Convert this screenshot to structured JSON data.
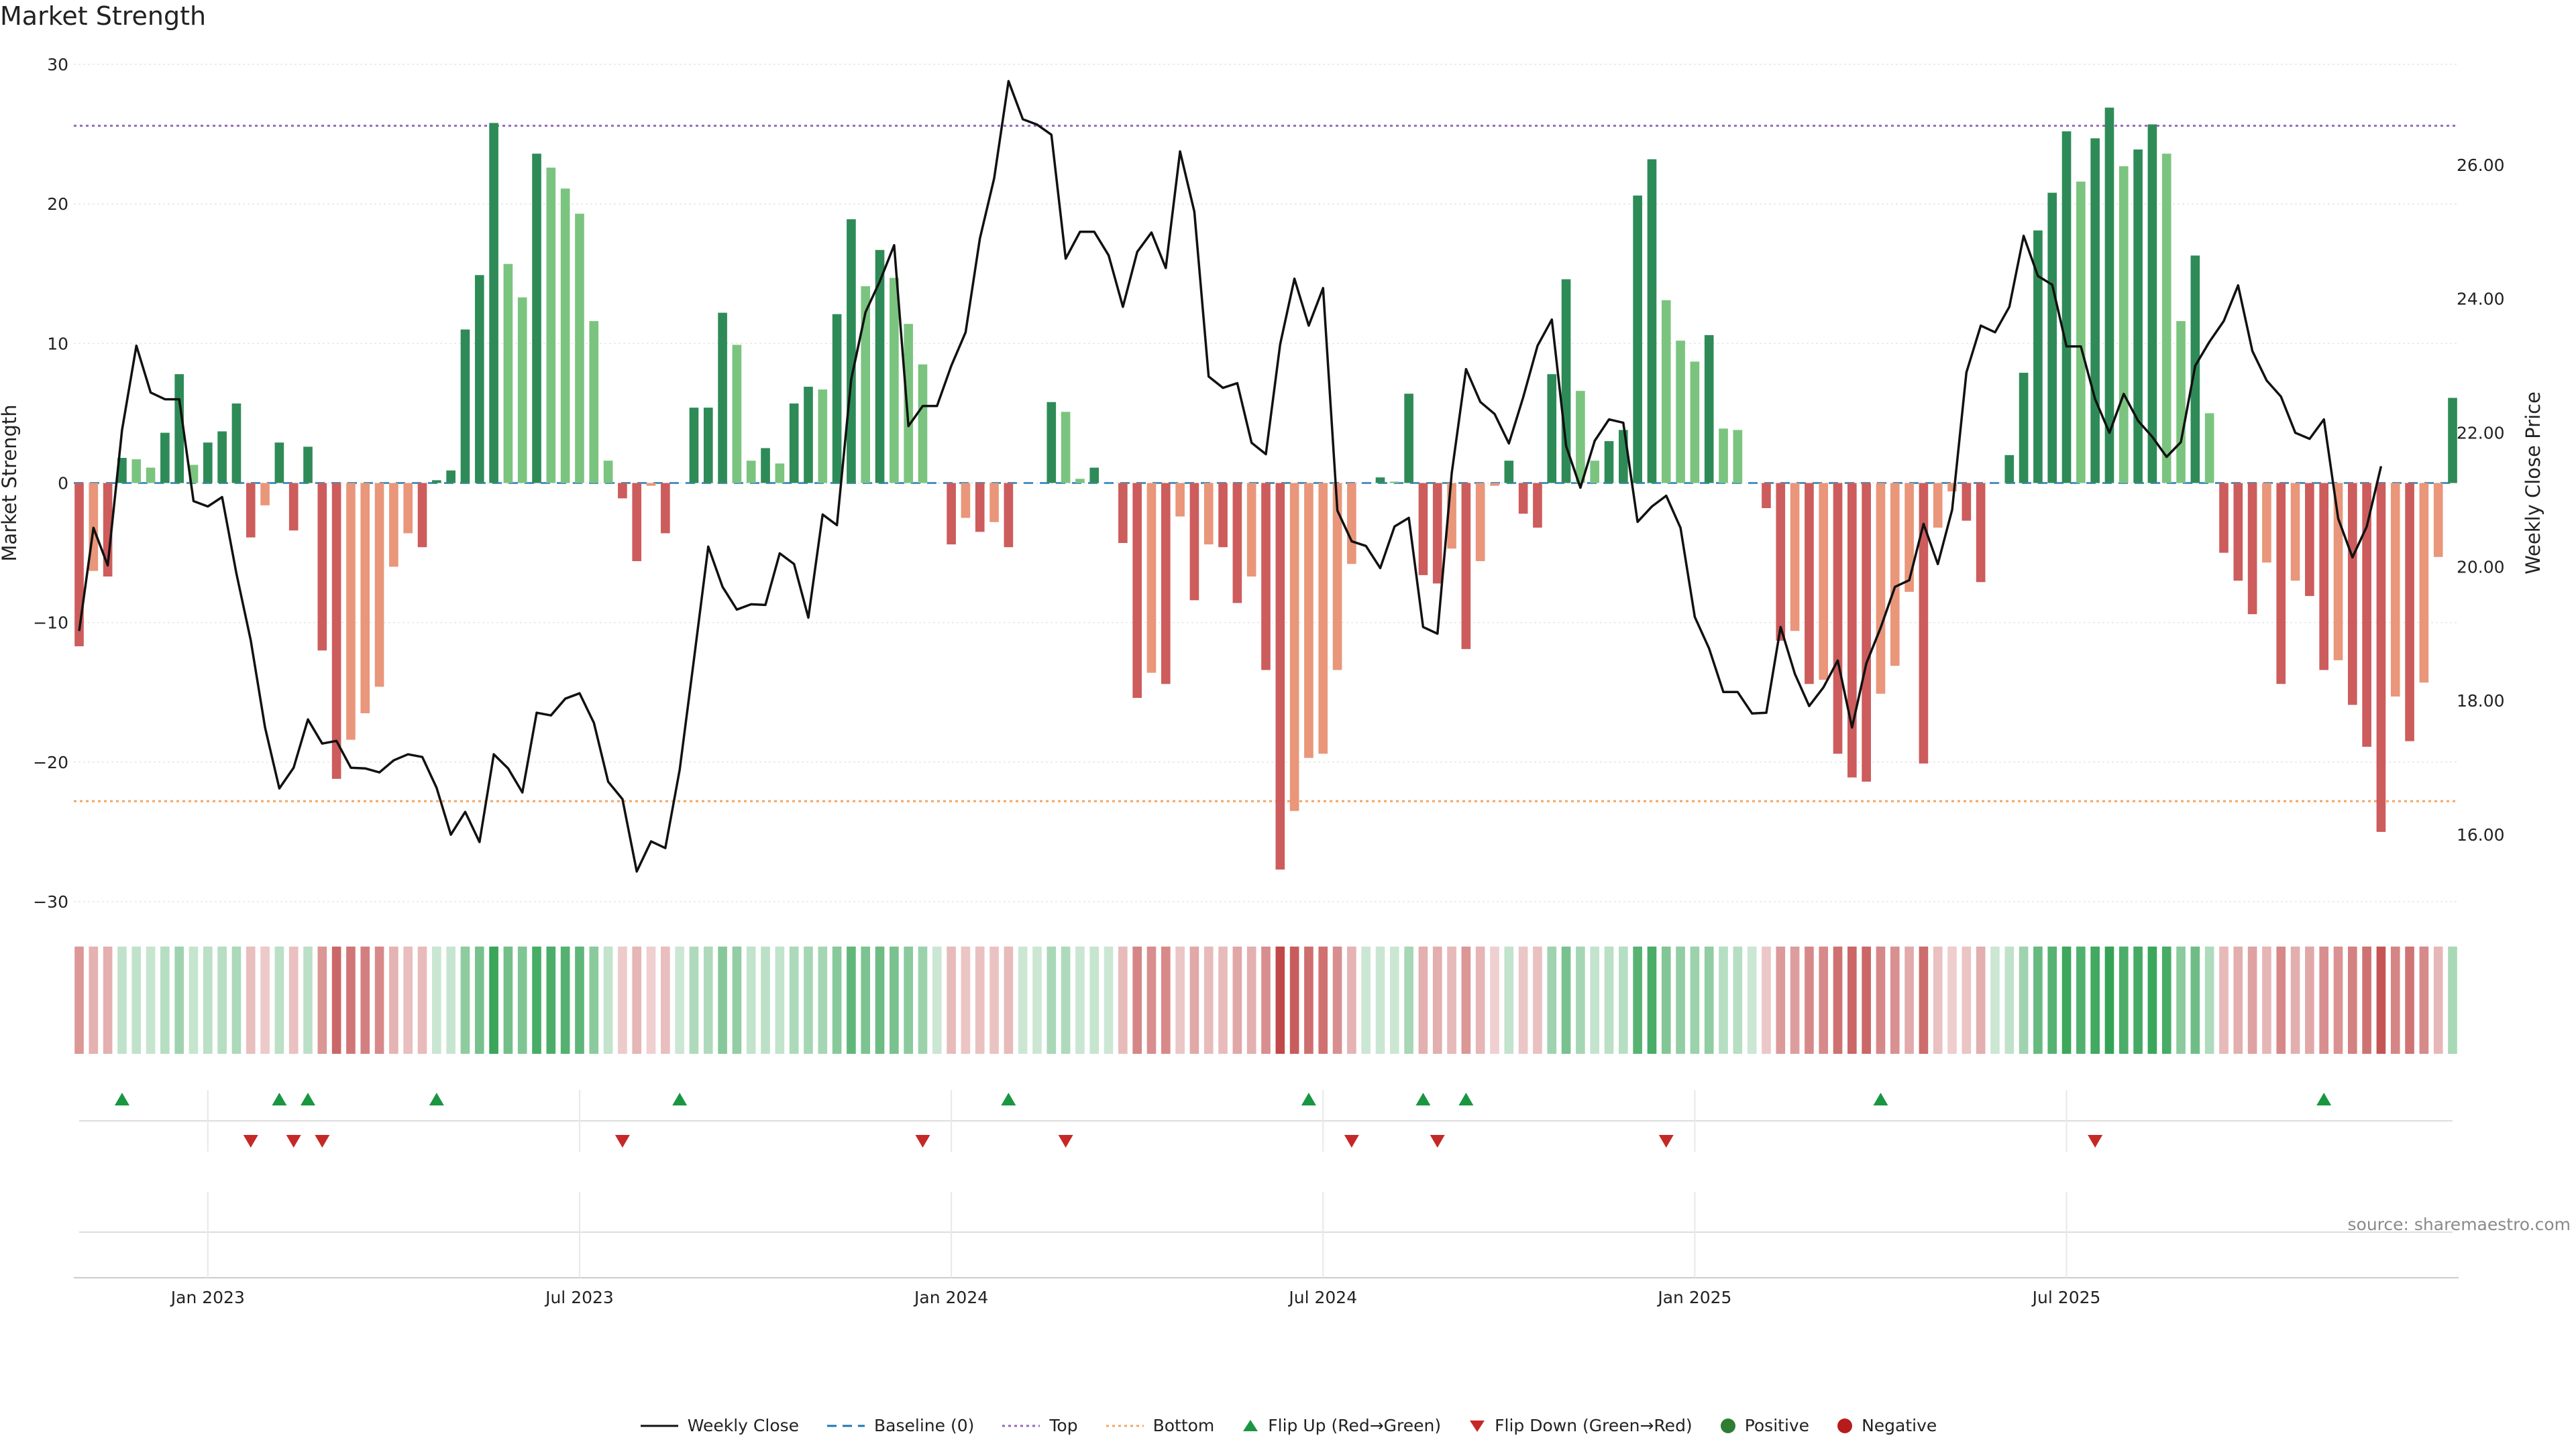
{
  "title": "Market Strength",
  "source": "source: sharemaestro.com",
  "chart_data": {
    "type": "bar",
    "ylabel": "Market Strength",
    "y2label": "Weekly Close Price",
    "ylim": [
      -30,
      30
    ],
    "y2lim": [
      15.0,
      27.5
    ],
    "yticks": [
      "30",
      "20",
      "10",
      "0",
      "−10",
      "−20",
      "−30"
    ],
    "y2ticks": [
      "26.00",
      "24.00",
      "22.00",
      "20.00",
      "18.00",
      "16.00"
    ],
    "x_ticks": [
      "Jan 2023",
      "Jul 2023",
      "Jan 2024",
      "Jul 2024",
      "Jan 2025",
      "Jul 2025"
    ],
    "top_level": 25.6,
    "bottom_level": -22.8,
    "grid": true,
    "legend_position": "bottom",
    "colors": {
      "strong_green": "#2e8b57",
      "light_green": "#7bc47f",
      "strong_red": "#cd5c5c",
      "light_red": "#e9967a",
      "price_line": "#111111",
      "top": "#9467bd",
      "bottom": "#f4a460",
      "baseline": "#1f77b4",
      "flip_up": "#1a9641",
      "flip_down": "#c62828"
    },
    "series": [
      {
        "name": "Market Strength",
        "values": [
          -11.7,
          -6.3,
          -6.7,
          1.8,
          1.7,
          1.1,
          3.6,
          7.8,
          1.3,
          2.9,
          3.7,
          5.7,
          -3.9,
          -1.6,
          2.9,
          -3.4,
          2.6,
          -12,
          -21.2,
          -18.4,
          -16.5,
          -14.6,
          -6,
          -3.6,
          -4.6,
          0.2,
          0.9,
          11,
          14.9,
          25.8,
          15.7,
          13.3,
          23.6,
          22.6,
          21.1,
          19.3,
          11.6,
          1.6,
          -1.1,
          -5.6,
          -0.2,
          -3.6,
          0,
          5.4,
          5.4,
          12.2,
          9.9,
          1.6,
          2.5,
          1.4,
          5.7,
          6.9,
          6.7,
          12.1,
          18.9,
          14.1,
          16.7,
          14.7,
          11.4,
          8.5,
          0,
          -4.4,
          -2.5,
          -3.5,
          -2.8,
          -4.6,
          0,
          0,
          5.8,
          5.1,
          0.3,
          1.1,
          0,
          -4.3,
          -15.4,
          -13.6,
          -14.4,
          -2.4,
          -8.4,
          -4.4,
          -4.6,
          -8.6,
          -6.7,
          -13.4,
          -27.7,
          -23.5,
          -19.7,
          -19.4,
          -13.4,
          -5.8,
          0,
          0.4,
          0.1,
          6.4,
          -6.6,
          -7.2,
          -4.7,
          -11.9,
          -5.6,
          -0.2,
          1.6,
          -2.2,
          -3.2,
          7.8,
          14.6,
          6.6,
          1.6,
          3,
          3.8,
          20.6,
          23.2,
          13.1,
          10.2,
          8.7,
          10.6,
          3.9,
          3.8,
          0,
          -1.8,
          -11.3,
          -10.6,
          -14.4,
          -14.1,
          -19.4,
          -21.1,
          -21.4,
          -15.1,
          -13.1,
          -7.8,
          -20.1,
          -3.2,
          -0.6,
          -2.7,
          -7.1,
          0,
          2,
          7.9,
          18.1,
          20.8,
          25.2,
          21.6,
          24.7,
          26.9,
          22.7,
          23.9,
          25.7,
          23.6,
          11.6,
          16.3,
          5,
          -5,
          -7,
          -9.4,
          -5.7,
          -14.4,
          -7,
          -8.1,
          -13.4,
          -12.7,
          -15.9,
          -18.9,
          -25,
          -15.3,
          -18.5,
          -14.3,
          -5.3,
          6.1
        ]
      },
      {
        "name": "Weekly Close",
        "values": [
          19.04,
          20.58,
          20.02,
          22.04,
          23.3,
          22.6,
          22.5,
          22.5,
          20.98,
          20.9,
          21.04,
          19.9,
          18.9,
          17.6,
          16.69,
          17.0,
          17.72,
          17.36,
          17.4,
          17.0,
          16.99,
          16.93,
          17.11,
          17.2,
          17.16,
          16.7,
          16.0,
          16.34,
          15.89,
          17.2,
          16.99,
          16.63,
          17.82,
          17.78,
          18.03,
          18.11,
          17.67,
          16.79,
          16.53,
          15.45,
          15.9,
          15.8,
          16.97,
          18.62,
          20.3,
          19.7,
          19.36,
          19.44,
          19.43,
          20.2,
          20.04,
          19.24,
          20.78,
          20.62,
          22.8,
          23.8,
          24.26,
          24.8,
          22.1,
          22.4,
          22.4,
          23.0,
          23.5,
          24.9,
          25.8,
          27.25,
          26.68,
          26.6,
          26.45,
          24.6,
          25.0,
          25.0,
          24.65,
          23.88,
          24.7,
          24.99,
          24.46,
          26.2,
          25.3,
          22.84,
          22.67,
          22.74,
          21.85,
          21.68,
          23.32,
          24.3,
          23.6,
          24.16,
          20.84,
          20.38,
          20.31,
          19.98,
          20.6,
          20.73,
          19.1,
          19.0,
          21.4,
          22.95,
          22.46,
          22.28,
          21.84,
          22.53,
          23.3,
          23.69,
          21.8,
          21.18,
          21.88,
          22.2,
          22.15,
          20.67,
          20.9,
          21.06,
          20.58,
          19.25,
          18.78,
          18.13,
          18.13,
          17.81,
          17.82,
          19.1,
          18.4,
          17.92,
          18.2,
          18.6,
          17.6,
          18.56,
          19.09,
          19.7,
          19.8,
          20.64,
          20.04,
          20.85,
          22.9,
          23.6,
          23.5,
          23.88,
          24.94,
          24.34,
          24.21,
          23.29,
          23.29,
          22.5,
          22.0,
          22.58,
          22.18,
          21.94,
          21.64,
          21.86,
          23.0,
          23.36,
          23.67,
          24.2,
          23.22,
          22.78,
          22.54,
          22.0,
          21.91,
          22.2,
          20.72,
          20.14,
          20.6,
          21.5
        ]
      }
    ],
    "flip_up_weeks": [
      3,
      14,
      16,
      25,
      42,
      65,
      86,
      94,
      97,
      126,
      157
    ],
    "flip_down_weeks": [
      12,
      15,
      17,
      38,
      59,
      69,
      89,
      95,
      111,
      141
    ],
    "legend": [
      {
        "label": "Weekly Close",
        "kind": "line"
      },
      {
        "label": "Baseline (0)",
        "kind": "dash"
      },
      {
        "label": "Top",
        "kind": "dotted-top"
      },
      {
        "label": "Bottom",
        "kind": "dotted-bottom"
      },
      {
        "label": "Flip Up (Red→Green)",
        "kind": "tri-up"
      },
      {
        "label": "Flip Down (Green→Red)",
        "kind": "tri-down"
      },
      {
        "label": "Positive",
        "kind": "dot-green"
      },
      {
        "label": "Negative",
        "kind": "dot-red"
      }
    ]
  }
}
